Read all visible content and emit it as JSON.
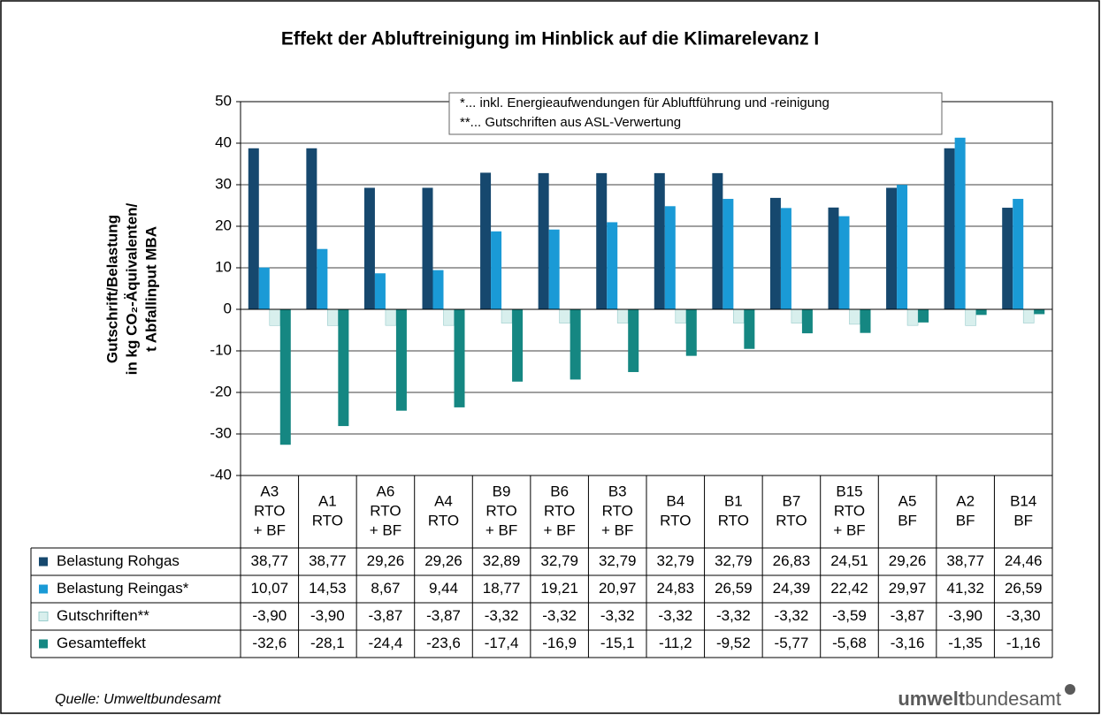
{
  "chart_data": {
    "type": "bar",
    "title": "Effekt der Abluftreinigung im Hinblick auf die Klimarelevanz I",
    "y_label": [
      "Gutschrift/Belastung",
      "in kg CO₂-Äquivalenten/",
      "t Abfallinput MBA"
    ],
    "annotations": [
      "*... inkl.  Energieaufwendungen für  Abluftführung und -reinigung",
      "**... Gutschriften aus ASL-Verwertung"
    ],
    "source": "Quelle: Umweltbundesamt",
    "logo": [
      "umwelt",
      "bundesamt"
    ],
    "categories": [
      [
        "A3",
        "RTO",
        "+ BF"
      ],
      [
        "A1",
        "RTO"
      ],
      [
        "A6",
        "RTO",
        "+ BF"
      ],
      [
        "A4",
        "RTO"
      ],
      [
        "B9",
        "RTO",
        "+ BF"
      ],
      [
        "B6",
        "RTO",
        "+ BF"
      ],
      [
        "B3",
        "RTO",
        "+ BF"
      ],
      [
        "B4",
        "RTO"
      ],
      [
        "B1",
        "RTO"
      ],
      [
        "B7",
        "RTO"
      ],
      [
        "B15",
        "RTO",
        "+ BF"
      ],
      [
        "A5",
        "BF"
      ],
      [
        "A2",
        "BF"
      ],
      [
        "B14",
        "BF"
      ]
    ],
    "ylim": [
      -40,
      50
    ],
    "yticks": [
      -40,
      -30,
      -20,
      -10,
      0,
      10,
      20,
      30,
      40,
      50
    ],
    "grid": true,
    "series": [
      {
        "name": "Belastung Rohgas",
        "color": "#16486e",
        "values": [
          38.77,
          38.77,
          29.26,
          29.26,
          32.89,
          32.79,
          32.79,
          32.79,
          32.79,
          26.83,
          24.51,
          29.26,
          38.77,
          24.46
        ],
        "value_labels": [
          "38,77",
          "38,77",
          "29,26",
          "29,26",
          "32,89",
          "32,79",
          "32,79",
          "32,79",
          "32,79",
          "26,83",
          "24,51",
          "29,26",
          "38,77",
          "24,46"
        ]
      },
      {
        "name": "Belastung Reingas*",
        "color": "#1a9ad6",
        "values": [
          10.07,
          14.53,
          8.67,
          9.44,
          18.77,
          19.21,
          20.97,
          24.83,
          26.59,
          24.39,
          22.42,
          29.97,
          41.32,
          26.59
        ],
        "value_labels": [
          "10,07",
          "14,53",
          "8,67",
          "9,44",
          "18,77",
          "19,21",
          "20,97",
          "24,83",
          "26,59",
          "24,39",
          "22,42",
          "29,97",
          "41,32",
          "26,59"
        ]
      },
      {
        "name": "Gutschriften**",
        "color": "#d8efed",
        "values": [
          -3.9,
          -3.9,
          -3.87,
          -3.87,
          -3.32,
          -3.32,
          -3.32,
          -3.32,
          -3.32,
          -3.32,
          -3.59,
          -3.87,
          -3.9,
          -3.3
        ],
        "value_labels": [
          "-3,90",
          "-3,90",
          "-3,87",
          "-3,87",
          "-3,32",
          "-3,32",
          "-3,32",
          "-3,32",
          "-3,32",
          "-3,32",
          "-3,59",
          "-3,87",
          "-3,90",
          "-3,30"
        ]
      },
      {
        "name": "Gesamteffekt",
        "color": "#158782",
        "values": [
          -32.6,
          -28.1,
          -24.4,
          -23.6,
          -17.4,
          -16.9,
          -15.1,
          -11.2,
          -9.52,
          -5.77,
          -5.68,
          -3.16,
          -1.35,
          -1.16
        ],
        "value_labels": [
          "-32,6",
          "-28,1",
          "-24,4",
          "-23,6",
          "-17,4",
          "-16,9",
          "-15,1",
          "-11,2",
          "-9,52",
          "-5,77",
          "-5,68",
          "-3,16",
          "-1,35",
          "-1,16"
        ]
      }
    ]
  }
}
